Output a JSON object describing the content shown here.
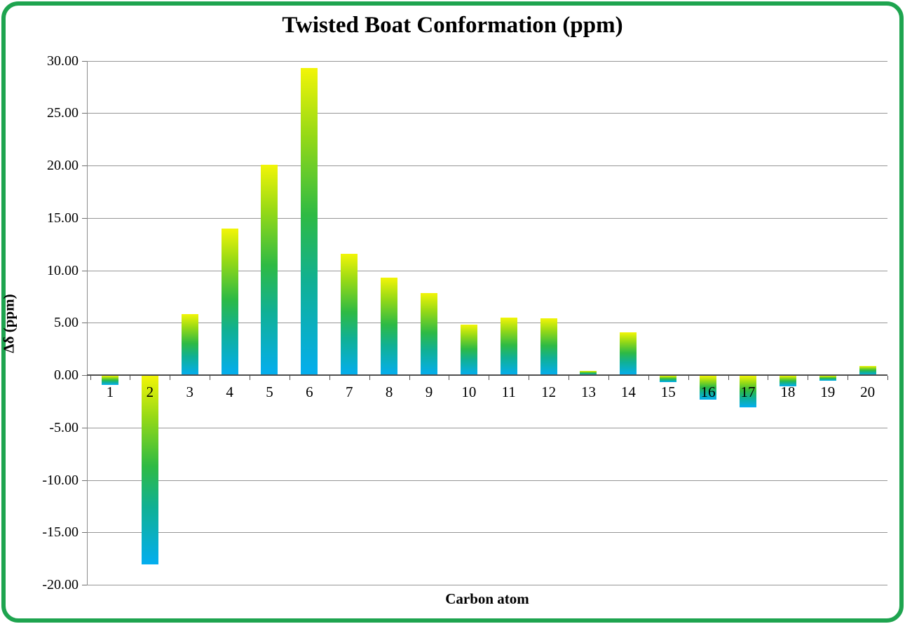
{
  "frame": {
    "border_color": "#1ea44f",
    "background_color": "#ffffff"
  },
  "chart_data": {
    "type": "bar",
    "title": "Twisted Boat Conformation (ppm)",
    "xlabel": "Carbon atom",
    "ylabel": "Δδ (ppm)",
    "categories": [
      "1",
      "2",
      "3",
      "4",
      "5",
      "6",
      "7",
      "8",
      "9",
      "10",
      "11",
      "12",
      "13",
      "14",
      "15",
      "16",
      "17",
      "18",
      "19",
      "20"
    ],
    "values": [
      -0.9,
      -18.0,
      5.8,
      14.0,
      20.1,
      29.3,
      11.6,
      9.3,
      7.8,
      4.8,
      5.5,
      5.4,
      0.4,
      4.1,
      -0.6,
      -2.3,
      -3.0,
      -1.0,
      -0.5,
      0.9
    ],
    "ylim": [
      -20,
      30
    ],
    "ytick_step": 5,
    "ytick_labels": [
      "30.00",
      "25.00",
      "20.00",
      "15.00",
      "10.00",
      "5.00",
      "0.00",
      "-5.00",
      "-10.00",
      "-15.00",
      "-20.00"
    ],
    "grid": true,
    "legend": "none",
    "bar_gradient_top_to_bottom": [
      "#f2f507",
      "#96d916",
      "#2eba44",
      "#10b095",
      "#04aeef"
    ],
    "gridline_color": "#969696",
    "axis_line_color": "#4d4d4d"
  }
}
